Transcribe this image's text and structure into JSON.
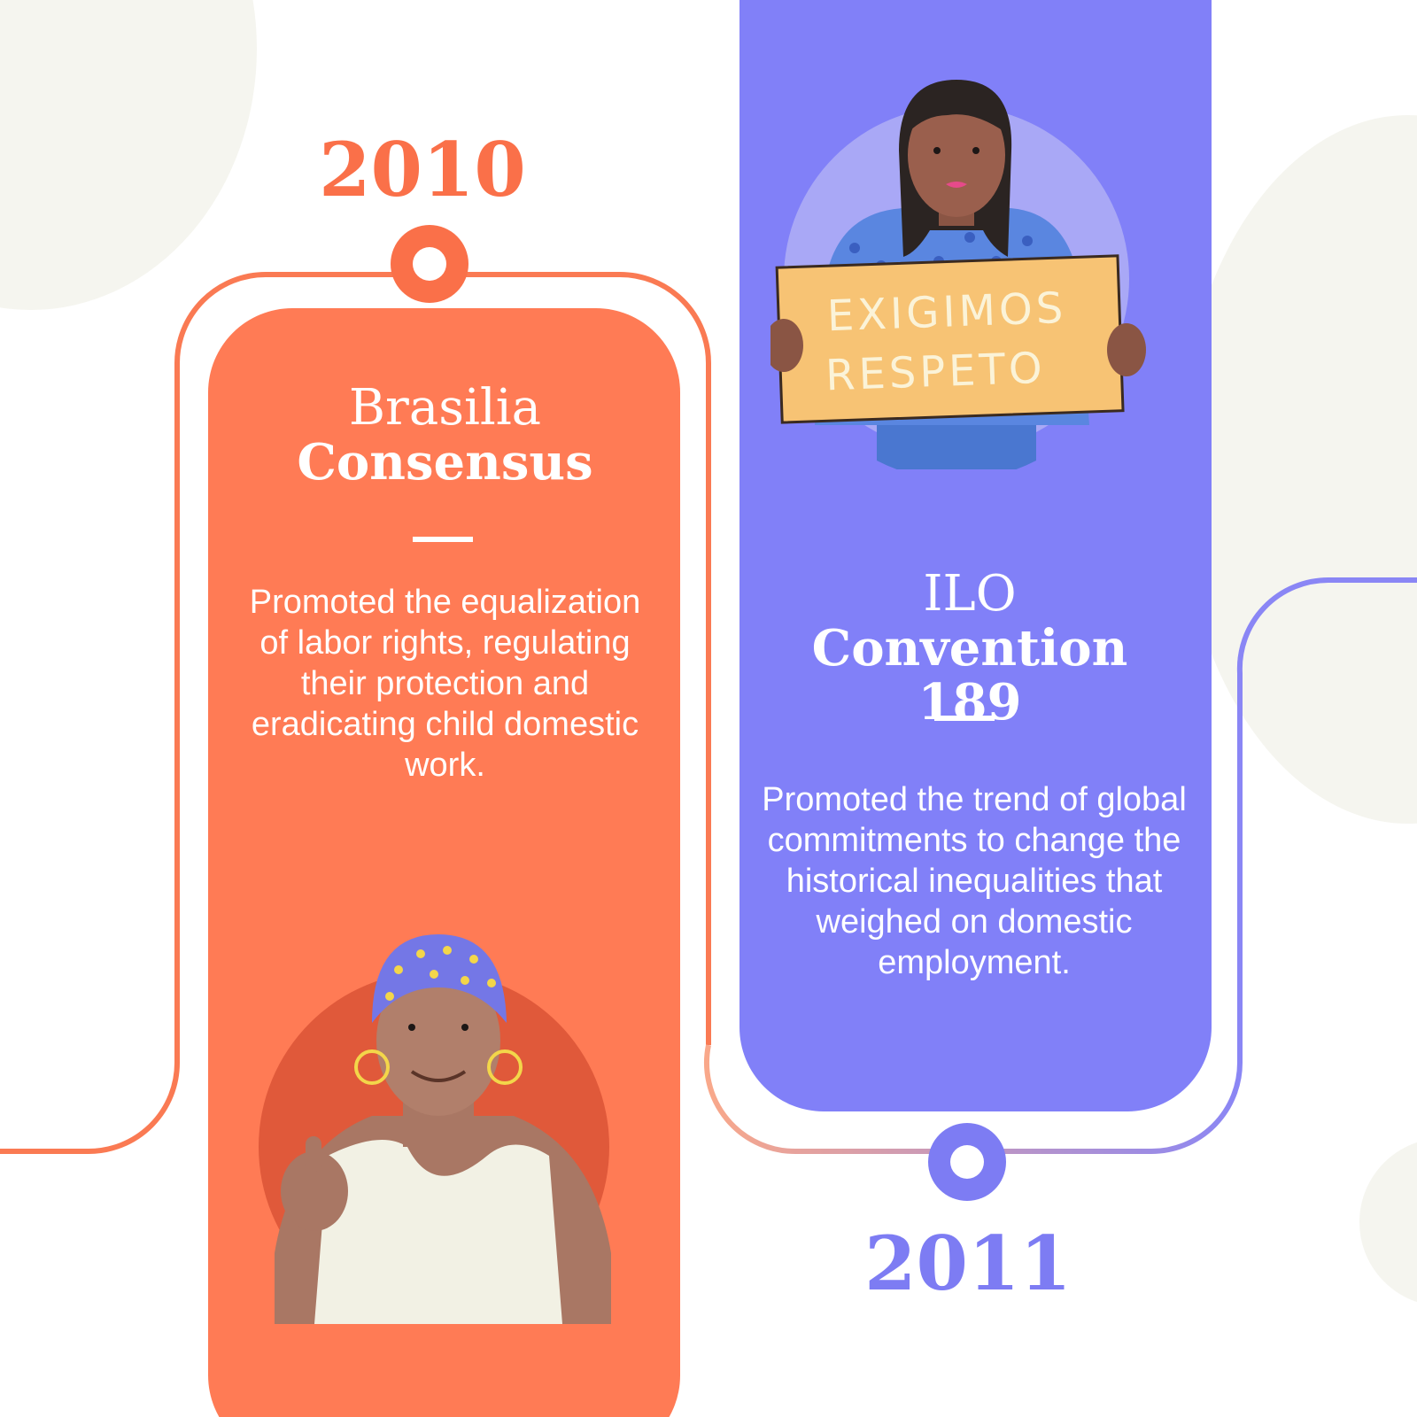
{
  "timeline": {
    "events": [
      {
        "year": "2010",
        "title_line1": "Brasilia",
        "title_line2": "Consensus",
        "description": "Promoted the equalization of labor rights, regulating their protection and eradicating child domestic work.",
        "accent_color": "#ff7b55"
      },
      {
        "year": "2011",
        "title_line1": "ILO",
        "title_line2": "Convention 189",
        "description": "Promoted the trend of global commitments to change the historical inequalities that weighed on domestic employment.",
        "accent_color": "#8180f8"
      }
    ],
    "sign": {
      "line1": "EXIGIMOS",
      "line2": "RESPETO"
    }
  },
  "icons": {
    "node_2010": "timeline-node-icon",
    "node_2011": "timeline-node-icon"
  }
}
